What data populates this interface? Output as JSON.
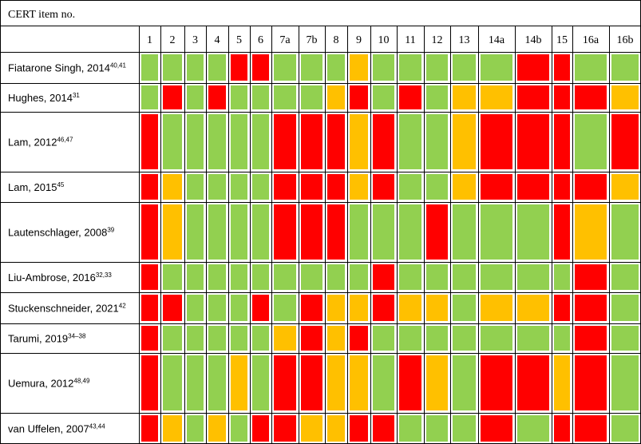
{
  "table_title": "CERT item no.",
  "columns": [
    "1",
    "2",
    "3",
    "4",
    "5",
    "6",
    "7a",
    "7b",
    "8",
    "9",
    "10",
    "11",
    "12",
    "13",
    "14a",
    "14b",
    "15",
    "16a",
    "16b"
  ],
  "colors": {
    "G": "#92d050",
    "R": "#ff0000",
    "Y": "#ffc000"
  },
  "rows": [
    {
      "label": "Fiatarone Singh, 2014",
      "refs": "40,41",
      "cells": [
        "G",
        "G",
        "G",
        "G",
        "R",
        "R",
        "G",
        "G",
        "G",
        "Y",
        "G",
        "G",
        "G",
        "G",
        "G",
        "R",
        "R",
        "G",
        "G"
      ]
    },
    {
      "label": "Hughes, 2014",
      "refs": "31",
      "cells": [
        "G",
        "R",
        "G",
        "R",
        "G",
        "G",
        "G",
        "G",
        "Y",
        "R",
        "G",
        "R",
        "G",
        "Y",
        "Y",
        "R",
        "R",
        "R",
        "Y"
      ]
    },
    {
      "label": "Lam, 2012",
      "refs": "46,47",
      "cells": [
        "R",
        "G",
        "G",
        "G",
        "G",
        "G",
        "R",
        "R",
        "R",
        "Y",
        "R",
        "G",
        "G",
        "Y",
        "R",
        "R",
        "R",
        "G",
        "R"
      ]
    },
    {
      "label": "Lam, 2015",
      "refs": "45",
      "cells": [
        "R",
        "Y",
        "G",
        "G",
        "G",
        "G",
        "R",
        "R",
        "R",
        "Y",
        "R",
        "G",
        "G",
        "Y",
        "R",
        "R",
        "R",
        "R",
        "Y"
      ]
    },
    {
      "label": "Lautenschlager, 2008",
      "refs": "39",
      "cells": [
        "R",
        "Y",
        "G",
        "G",
        "G",
        "G",
        "R",
        "R",
        "R",
        "G",
        "G",
        "G",
        "R",
        "G",
        "G",
        "G",
        "R",
        "Y",
        "G"
      ]
    },
    {
      "label": "Liu-Ambrose, 2016",
      "refs": "32,33",
      "cells": [
        "R",
        "G",
        "G",
        "G",
        "G",
        "G",
        "G",
        "G",
        "G",
        "G",
        "R",
        "G",
        "G",
        "G",
        "G",
        "G",
        "G",
        "R",
        "G"
      ]
    },
    {
      "label": "Stuckenschneider, 2021",
      "refs": "42",
      "cells": [
        "R",
        "R",
        "G",
        "G",
        "G",
        "R",
        "G",
        "R",
        "Y",
        "Y",
        "R",
        "Y",
        "Y",
        "G",
        "Y",
        "Y",
        "R",
        "R",
        "G"
      ]
    },
    {
      "label": "Tarumi, 2019",
      "refs": "34–38",
      "cells": [
        "R",
        "G",
        "G",
        "G",
        "G",
        "G",
        "Y",
        "R",
        "Y",
        "R",
        "G",
        "G",
        "G",
        "G",
        "G",
        "G",
        "G",
        "R",
        "G"
      ]
    },
    {
      "label": "Uemura, 2012",
      "refs": "48,49",
      "cells": [
        "R",
        "G",
        "G",
        "G",
        "Y",
        "G",
        "R",
        "R",
        "Y",
        "Y",
        "G",
        "R",
        "Y",
        "G",
        "R",
        "R",
        "Y",
        "R",
        "G"
      ]
    },
    {
      "label": "van Uffelen, 2007",
      "refs": "43,44",
      "cells": [
        "R",
        "Y",
        "G",
        "Y",
        "G",
        "R",
        "R",
        "Y",
        "Y",
        "R",
        "R",
        "G",
        "G",
        "G",
        "R",
        "G",
        "R",
        "R",
        "G"
      ]
    }
  ]
}
